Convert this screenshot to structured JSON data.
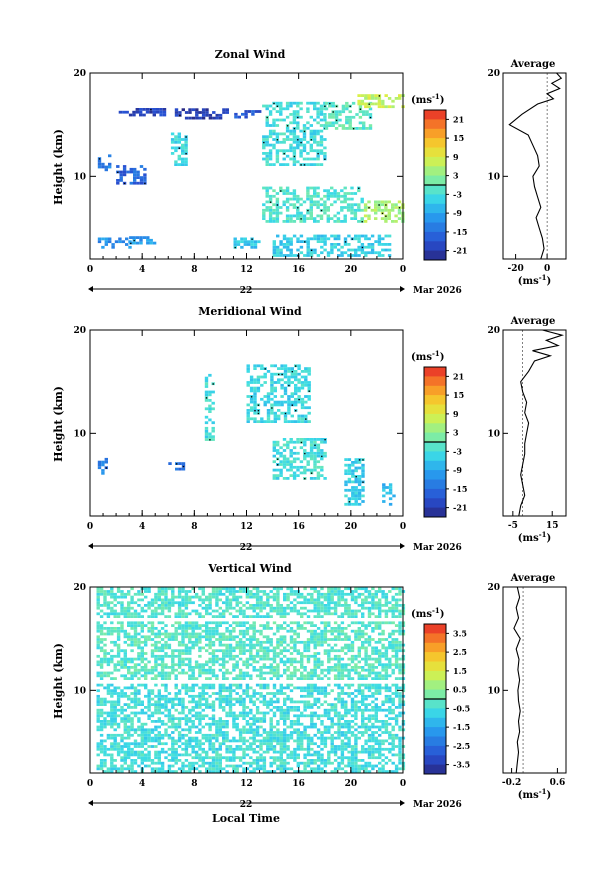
{
  "chart_data": [
    {
      "type": "heatmap",
      "title": "Zonal Wind",
      "ylabel": "Height (km)",
      "xlabel": "",
      "x_ticks": [
        "0",
        "4",
        "8",
        "12",
        "16",
        "20",
        "0"
      ],
      "y_ticks": [
        "10",
        "20"
      ],
      "ylim": [
        2,
        20
      ],
      "xlim": [
        0,
        24
      ],
      "date_day": "22",
      "date_month": "Mar 2026",
      "colorbar": {
        "unit": "(ms",
        "unit_exp": "-1",
        "unit_close": ")",
        "ticks": [
          "21",
          "15",
          "9",
          "3",
          "-3",
          "-9",
          "-15",
          "-21"
        ],
        "range": [
          -24,
          24
        ]
      },
      "regions": [
        {
          "t0": 2.2,
          "t1": 6.0,
          "h0": 15.8,
          "h1": 16.6,
          "v": -20
        },
        {
          "t0": 6.5,
          "t1": 10.5,
          "h0": 15.5,
          "h1": 16.4,
          "v": -21
        },
        {
          "t0": 10.8,
          "t1": 13.0,
          "h0": 15.6,
          "h1": 16.3,
          "v": -17
        },
        {
          "t0": 13.2,
          "t1": 18.0,
          "h0": 11.0,
          "h1": 17.0,
          "v": -3
        },
        {
          "t0": 18.0,
          "t1": 21.5,
          "h0": 14.5,
          "h1": 17.0,
          "v": -1
        },
        {
          "t0": 20.5,
          "t1": 24.0,
          "h0": 16.6,
          "h1": 17.8,
          "v": 7
        },
        {
          "t0": 2.0,
          "t1": 4.2,
          "h0": 9.2,
          "h1": 11.0,
          "v": -16
        },
        {
          "t0": 0.6,
          "t1": 1.6,
          "h0": 10.5,
          "h1": 12.0,
          "v": -13
        },
        {
          "t0": 6.2,
          "t1": 7.4,
          "h0": 11.0,
          "h1": 14.0,
          "v": -4
        },
        {
          "t0": 13.2,
          "t1": 21.0,
          "h0": 5.5,
          "h1": 9.0,
          "v": -2
        },
        {
          "t0": 21.0,
          "t1": 24.0,
          "h0": 5.5,
          "h1": 7.5,
          "v": 5
        },
        {
          "t0": 0.6,
          "t1": 3.0,
          "h0": 3.0,
          "h1": 4.0,
          "v": -11
        },
        {
          "t0": 3.0,
          "t1": 5.0,
          "h0": 3.4,
          "h1": 4.2,
          "v": -10
        },
        {
          "t0": 14.0,
          "t1": 23.0,
          "h0": 2.2,
          "h1": 4.2,
          "v": -5
        },
        {
          "t0": 11.0,
          "t1": 13.0,
          "h0": 3.0,
          "h1": 4.0,
          "v": -6
        }
      ],
      "avg_profile": {
        "title": "Average",
        "x_ticks": [
          "-20",
          "0"
        ],
        "xlim": [
          -28,
          12
        ],
        "heights": [
          2,
          3,
          4,
          5,
          6,
          7,
          8,
          9,
          10,
          11,
          12,
          13,
          14,
          15,
          16,
          17,
          17.5,
          18,
          18.5,
          19,
          19.5,
          20
        ],
        "values": [
          -4,
          -2,
          -3,
          -5,
          -7,
          -4,
          -6,
          -8,
          -9,
          -5,
          -6,
          -9,
          -12,
          -24,
          -16,
          -6,
          4,
          0,
          8,
          3,
          9,
          6
        ]
      }
    },
    {
      "type": "heatmap",
      "title": "Meridional Wind",
      "ylabel": "Height (km)",
      "xlabel": "",
      "x_ticks": [
        "0",
        "4",
        "8",
        "12",
        "16",
        "20",
        "0"
      ],
      "y_ticks": [
        "10",
        "20"
      ],
      "ylim": [
        2,
        20
      ],
      "xlim": [
        0,
        24
      ],
      "date_day": "22",
      "date_month": "Mar 2026",
      "colorbar": {
        "unit": "(ms",
        "unit_exp": "-1",
        "unit_close": ")",
        "ticks": [
          "21",
          "15",
          "9",
          "3",
          "-3",
          "-9",
          "-15",
          "-21"
        ],
        "range": [
          -24,
          24
        ]
      },
      "regions": [
        {
          "t0": 12.0,
          "t1": 16.8,
          "h0": 11.0,
          "h1": 16.5,
          "v": -4
        },
        {
          "t0": 14.0,
          "t1": 18.0,
          "h0": 5.5,
          "h1": 9.5,
          "v": -3
        },
        {
          "t0": 8.8,
          "t1": 9.4,
          "h0": 9.0,
          "h1": 15.5,
          "v": -3
        },
        {
          "t0": 6.0,
          "t1": 7.2,
          "h0": 6.4,
          "h1": 7.0,
          "v": -14
        },
        {
          "t0": 0.6,
          "t1": 1.2,
          "h0": 6.0,
          "h1": 7.5,
          "v": -13
        },
        {
          "t0": 19.5,
          "t1": 21.0,
          "h0": 3.0,
          "h1": 7.5,
          "v": -5
        },
        {
          "t0": 22.4,
          "t1": 23.4,
          "h0": 3.0,
          "h1": 5.0,
          "v": -7
        }
      ],
      "avg_profile": {
        "title": "Average",
        "x_ticks": [
          "-5",
          "15"
        ],
        "xlim": [
          -10,
          22
        ],
        "heights": [
          2,
          3,
          4,
          5,
          6,
          7,
          8,
          9,
          10,
          11,
          12,
          13,
          14,
          15,
          16,
          17,
          17.5,
          18,
          18.5,
          19,
          19.5,
          20
        ],
        "values": [
          -2,
          -1,
          1,
          0,
          -1,
          0,
          1,
          1,
          2,
          3,
          1,
          2,
          0,
          -1,
          3,
          6,
          14,
          5,
          18,
          12,
          20,
          10
        ]
      }
    },
    {
      "type": "heatmap",
      "title": "Vertical Wind",
      "ylabel": "Height (km)",
      "xlabel": "Local Time",
      "x_ticks": [
        "0",
        "4",
        "8",
        "12",
        "16",
        "20",
        "0"
      ],
      "y_ticks": [
        "10",
        "20"
      ],
      "ylim": [
        2,
        20
      ],
      "xlim": [
        0,
        24
      ],
      "date_day": "22",
      "date_month": "Mar 2026",
      "colorbar": {
        "unit": "(ms",
        "unit_exp": "-1",
        "unit_close": ")",
        "ticks": [
          "3.5",
          "2.5",
          "1.5",
          "0.5",
          "-0.5",
          "-1.5",
          "-2.5",
          "-3.5"
        ],
        "range": [
          -4,
          4
        ]
      },
      "regions": [
        {
          "t0": 0.5,
          "t1": 24.0,
          "h0": 11.0,
          "h1": 16.5,
          "v": -0.2
        },
        {
          "t0": 0.5,
          "t1": 24.0,
          "h0": 17.0,
          "h1": 19.8,
          "v": -0.3
        },
        {
          "t0": 0.5,
          "t1": 24.0,
          "h0": 2.0,
          "h1": 10.5,
          "v": -0.5
        }
      ],
      "avg_profile": {
        "title": "Average",
        "x_ticks": [
          "-0.2",
          "0.6"
        ],
        "xlim": [
          -0.35,
          0.75
        ],
        "heights": [
          2,
          3,
          4,
          5,
          6,
          7,
          8,
          9,
          10,
          11,
          12,
          13,
          14,
          15,
          16,
          17,
          18,
          19,
          20
        ],
        "values": [
          -0.12,
          -0.1,
          -0.08,
          -0.1,
          -0.06,
          -0.08,
          -0.05,
          -0.08,
          -0.09,
          -0.06,
          -0.09,
          -0.07,
          -0.12,
          -0.05,
          -0.16,
          -0.08,
          -0.12,
          -0.06,
          -0.1
        ]
      }
    }
  ]
}
